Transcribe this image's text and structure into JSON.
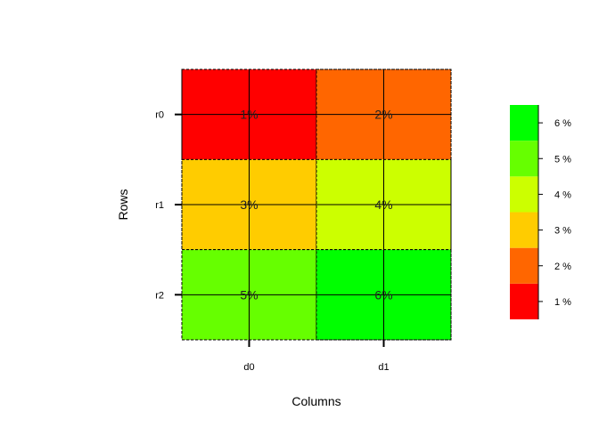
{
  "chart_data": {
    "type": "heatmap",
    "title": "",
    "xlabel": "Columns",
    "ylabel": "Rows",
    "columns": [
      "d0",
      "d1"
    ],
    "rows": [
      "r0",
      "r1",
      "r2"
    ],
    "values": [
      [
        1,
        2
      ],
      [
        3,
        4
      ],
      [
        5,
        6
      ]
    ],
    "cell_labels": [
      [
        "1%",
        "2%"
      ],
      [
        "3%",
        "4%"
      ],
      [
        "5%",
        "6%"
      ]
    ],
    "legend": {
      "placement": "right",
      "levels": [
        {
          "label": "1 %",
          "color": "#ff0000"
        },
        {
          "label": "2 %",
          "color": "#ff6600"
        },
        {
          "label": "3 %",
          "color": "#ffcc00"
        },
        {
          "label": "4 %",
          "color": "#ccff00"
        },
        {
          "label": "5 %",
          "color": "#66ff00"
        },
        {
          "label": "6 %",
          "color": "#00ff00"
        }
      ]
    },
    "grid": true
  }
}
